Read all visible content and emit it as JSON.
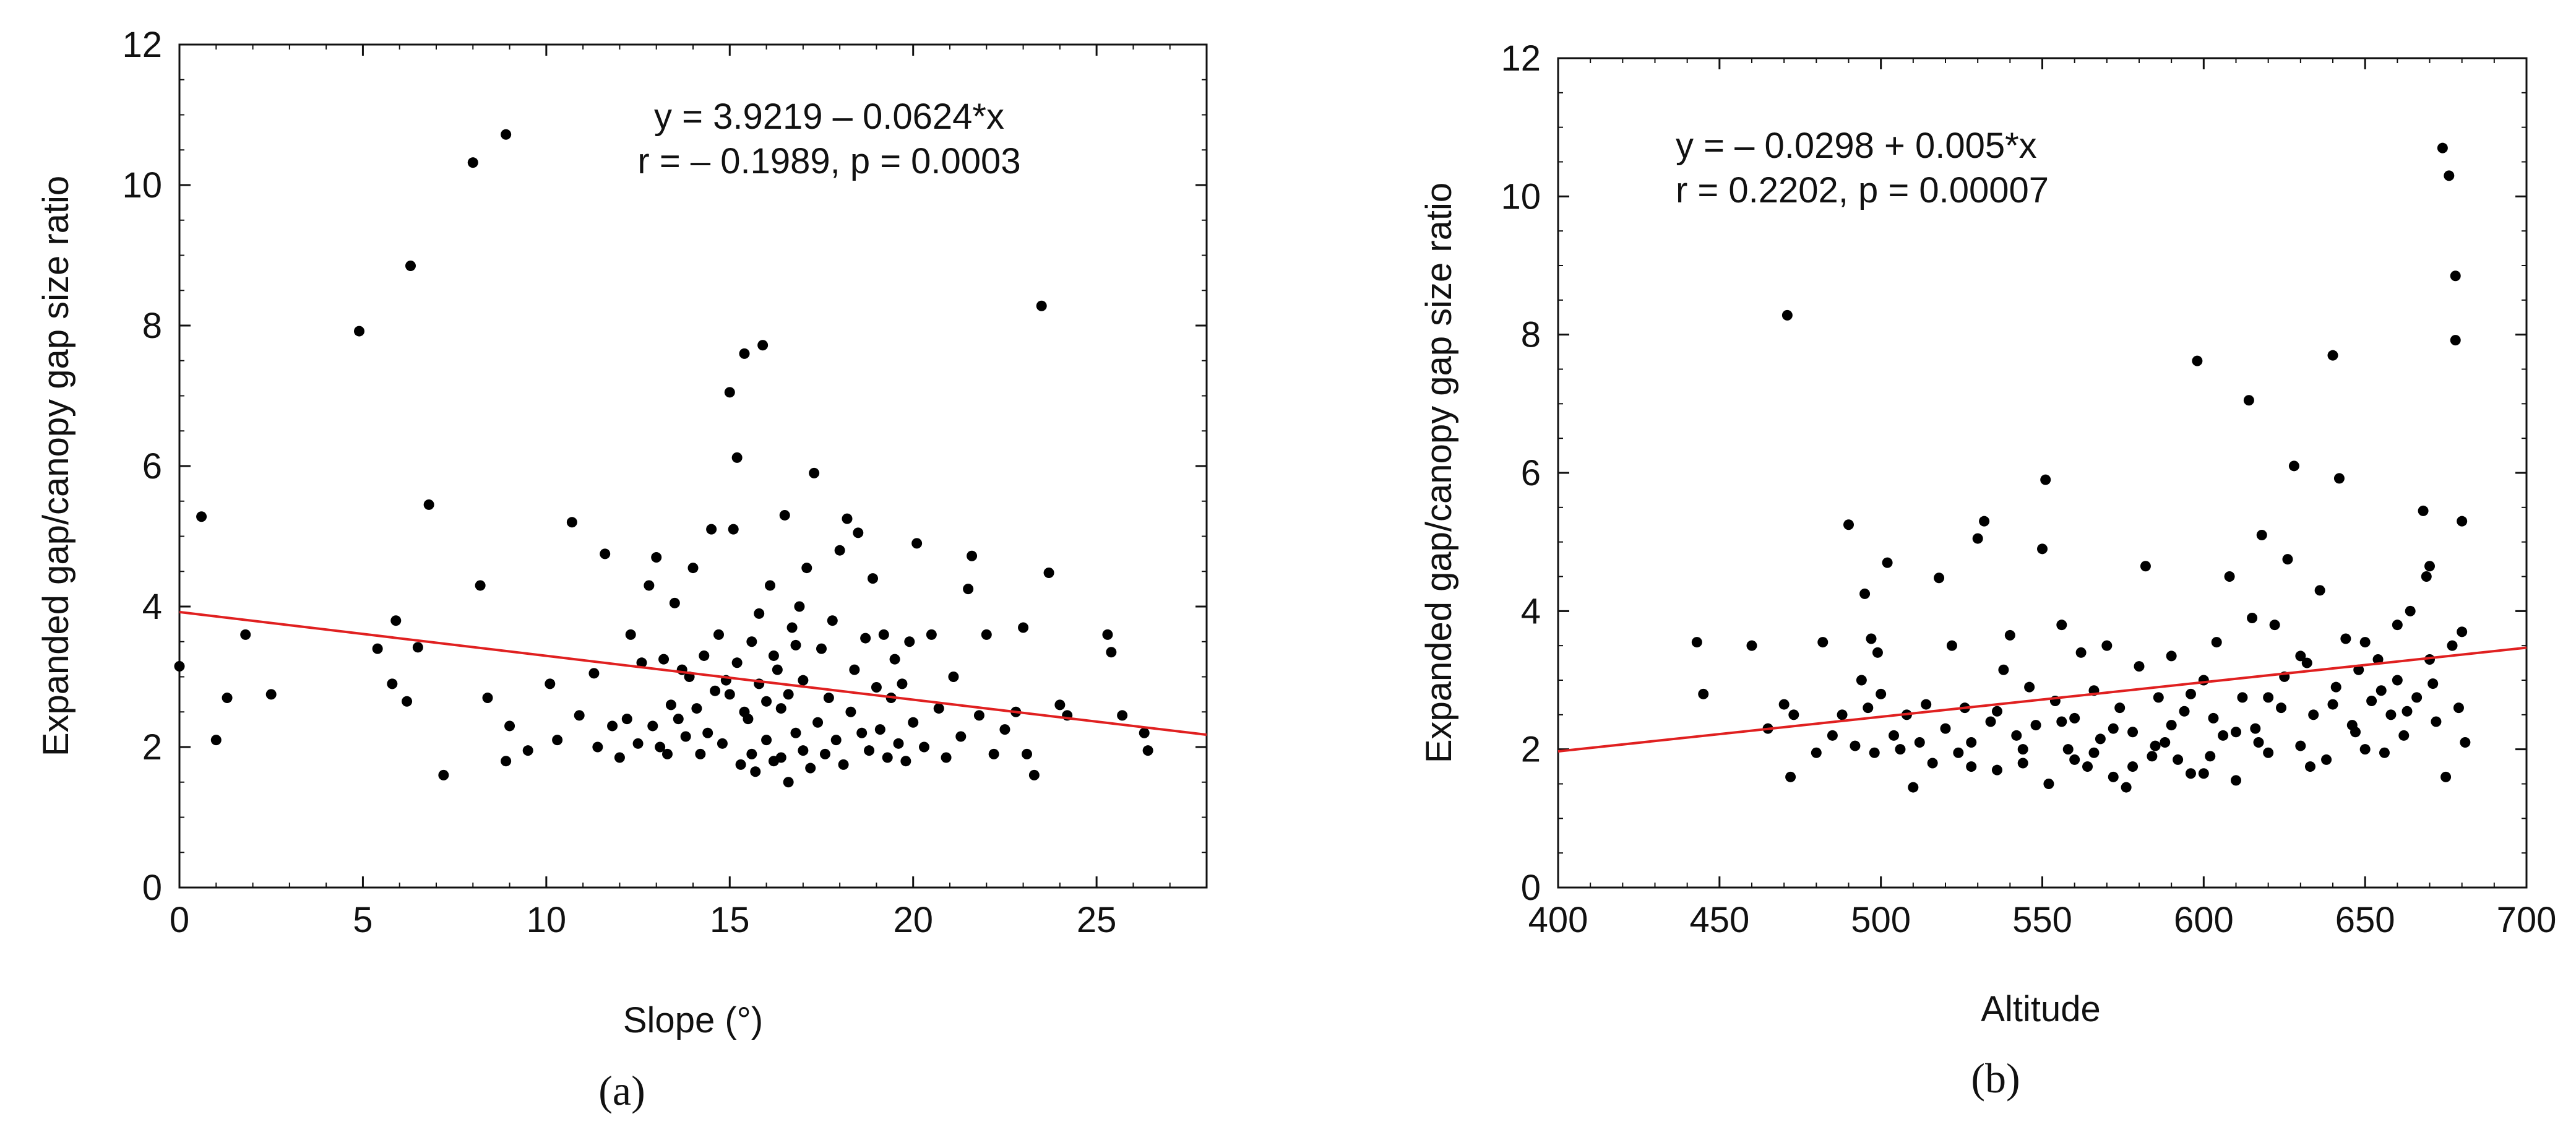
{
  "chart_data": [
    {
      "type": "scatter",
      "panel_label": "(a)",
      "xlabel": "Slope (°)",
      "ylabel": "Expanded gap/canopy gap size ratio",
      "xlim": [
        0,
        28
      ],
      "ylim": [
        0,
        12
      ],
      "xticks": [
        0,
        5,
        10,
        15,
        20,
        25
      ],
      "yticks": [
        0,
        2,
        4,
        6,
        8,
        10,
        12
      ],
      "equation": "y = 3.9219 – 0.0624*x",
      "stats": "r = – 0.1989, p = 0.0003",
      "regression": {
        "intercept": 3.9219,
        "slope": -0.0624,
        "color": "#e02020"
      },
      "point_color": "#000000",
      "points": [
        [
          0,
          3.15
        ],
        [
          0.6,
          5.28
        ],
        [
          1.0,
          2.1
        ],
        [
          1.3,
          2.7
        ],
        [
          1.8,
          3.6
        ],
        [
          2.5,
          2.75
        ],
        [
          4.9,
          7.92
        ],
        [
          5.4,
          3.4
        ],
        [
          5.8,
          2.9
        ],
        [
          5.9,
          3.8
        ],
        [
          6.2,
          2.65
        ],
        [
          6.3,
          8.85
        ],
        [
          6.5,
          3.42
        ],
        [
          6.8,
          5.45
        ],
        [
          7.2,
          1.6
        ],
        [
          8.0,
          10.32
        ],
        [
          8.2,
          4.3
        ],
        [
          8.4,
          2.7
        ],
        [
          8.9,
          10.72
        ],
        [
          8.9,
          1.8
        ],
        [
          9.0,
          2.3
        ],
        [
          9.5,
          1.95
        ],
        [
          10.1,
          2.9
        ],
        [
          10.3,
          2.1
        ],
        [
          10.7,
          5.2
        ],
        [
          10.9,
          2.45
        ],
        [
          11.3,
          3.05
        ],
        [
          11.4,
          2.0
        ],
        [
          11.6,
          4.75
        ],
        [
          11.8,
          2.3
        ],
        [
          12.0,
          1.85
        ],
        [
          12.2,
          2.4
        ],
        [
          12.3,
          3.6
        ],
        [
          12.5,
          2.05
        ],
        [
          12.6,
          3.2
        ],
        [
          12.8,
          4.3
        ],
        [
          12.9,
          2.3
        ],
        [
          13.0,
          4.7
        ],
        [
          13.1,
          2.0
        ],
        [
          13.2,
          3.25
        ],
        [
          13.3,
          1.9
        ],
        [
          13.4,
          2.6
        ],
        [
          13.5,
          4.05
        ],
        [
          13.6,
          2.4
        ],
        [
          13.7,
          3.1
        ],
        [
          13.8,
          2.15
        ],
        [
          13.9,
          3.0
        ],
        [
          14.0,
          4.55
        ],
        [
          14.1,
          2.55
        ],
        [
          14.2,
          1.9
        ],
        [
          14.3,
          3.3
        ],
        [
          14.4,
          2.2
        ],
        [
          14.5,
          5.1
        ],
        [
          14.6,
          2.8
        ],
        [
          14.7,
          3.6
        ],
        [
          14.8,
          2.05
        ],
        [
          14.9,
          2.95
        ],
        [
          15.0,
          7.05
        ],
        [
          15.0,
          2.75
        ],
        [
          15.1,
          5.1
        ],
        [
          15.2,
          6.12
        ],
        [
          15.3,
          1.75
        ],
        [
          15.4,
          7.6
        ],
        [
          15.5,
          2.4
        ],
        [
          15.6,
          3.5
        ],
        [
          15.7,
          1.65
        ],
        [
          15.8,
          2.9
        ],
        [
          15.9,
          7.72
        ],
        [
          16.0,
          2.1
        ],
        [
          16.1,
          4.3
        ],
        [
          16.2,
          1.8
        ],
        [
          16.3,
          3.1
        ],
        [
          16.4,
          2.55
        ],
        [
          16.5,
          5.3
        ],
        [
          16.6,
          1.5
        ],
        [
          16.7,
          3.7
        ],
        [
          16.8,
          2.2
        ],
        [
          16.9,
          4.0
        ],
        [
          15.2,
          3.2
        ],
        [
          15.4,
          2.5
        ],
        [
          15.6,
          1.9
        ],
        [
          15.8,
          3.9
        ],
        [
          16.0,
          2.65
        ],
        [
          16.2,
          3.3
        ],
        [
          16.4,
          1.85
        ],
        [
          16.6,
          2.75
        ],
        [
          16.8,
          3.45
        ],
        [
          17.0,
          1.95
        ],
        [
          17.0,
          2.95
        ],
        [
          17.1,
          4.55
        ],
        [
          17.2,
          1.7
        ],
        [
          17.3,
          5.9
        ],
        [
          17.4,
          2.35
        ],
        [
          17.5,
          3.4
        ],
        [
          17.6,
          1.9
        ],
        [
          17.7,
          2.7
        ],
        [
          17.8,
          3.8
        ],
        [
          17.9,
          2.1
        ],
        [
          18.0,
          4.8
        ],
        [
          18.1,
          1.75
        ],
        [
          18.2,
          5.25
        ],
        [
          18.3,
          2.5
        ],
        [
          18.4,
          3.1
        ],
        [
          18.5,
          5.05
        ],
        [
          18.6,
          2.2
        ],
        [
          18.7,
          3.55
        ],
        [
          18.8,
          1.95
        ],
        [
          18.9,
          4.4
        ],
        [
          19.0,
          2.85
        ],
        [
          19.1,
          2.25
        ],
        [
          19.2,
          3.6
        ],
        [
          19.3,
          1.85
        ],
        [
          19.4,
          2.7
        ],
        [
          19.5,
          3.25
        ],
        [
          19.6,
          2.05
        ],
        [
          19.7,
          2.9
        ],
        [
          19.8,
          1.8
        ],
        [
          19.9,
          3.5
        ],
        [
          20.0,
          2.35
        ],
        [
          20.1,
          4.9
        ],
        [
          20.3,
          2.0
        ],
        [
          20.5,
          3.6
        ],
        [
          20.7,
          2.55
        ],
        [
          20.9,
          1.85
        ],
        [
          21.1,
          3.0
        ],
        [
          21.3,
          2.15
        ],
        [
          21.5,
          4.25
        ],
        [
          21.6,
          4.72
        ],
        [
          21.8,
          2.45
        ],
        [
          22.0,
          3.6
        ],
        [
          22.2,
          1.9
        ],
        [
          22.5,
          2.25
        ],
        [
          22.8,
          2.5
        ],
        [
          23.0,
          3.7
        ],
        [
          23.1,
          1.9
        ],
        [
          23.3,
          1.6
        ],
        [
          23.5,
          8.28
        ],
        [
          23.7,
          4.48
        ],
        [
          24.0,
          2.6
        ],
        [
          24.2,
          2.45
        ],
        [
          25.3,
          3.6
        ],
        [
          25.4,
          3.35
        ],
        [
          25.7,
          2.45
        ],
        [
          26.3,
          2.2
        ],
        [
          26.4,
          1.95
        ]
      ]
    },
    {
      "type": "scatter",
      "panel_label": "(b)",
      "xlabel": "Altitude",
      "ylabel": "Expanded gap/canopy gap size ratio",
      "xlim": [
        400,
        700
      ],
      "ylim": [
        0,
        12
      ],
      "xticks": [
        400,
        450,
        500,
        550,
        600,
        650,
        700
      ],
      "yticks": [
        0,
        2,
        4,
        6,
        8,
        10,
        12
      ],
      "equation": "y = – 0.0298 + 0.005*x",
      "stats": "r = 0.2202, p = 0.00007",
      "regression": {
        "intercept": -0.0298,
        "slope": 0.005,
        "color": "#e02020"
      },
      "point_color": "#000000",
      "points": [
        [
          443,
          3.55
        ],
        [
          445,
          2.8
        ],
        [
          460,
          3.5
        ],
        [
          465,
          2.3
        ],
        [
          470,
          2.65
        ],
        [
          471,
          8.28
        ],
        [
          472,
          1.6
        ],
        [
          473,
          2.5
        ],
        [
          480,
          1.95
        ],
        [
          482,
          3.55
        ],
        [
          485,
          2.2
        ],
        [
          488,
          2.5
        ],
        [
          490,
          5.25
        ],
        [
          492,
          2.05
        ],
        [
          494,
          3.0
        ],
        [
          495,
          4.25
        ],
        [
          496,
          2.6
        ],
        [
          497,
          3.6
        ],
        [
          498,
          1.95
        ],
        [
          499,
          3.4
        ],
        [
          500,
          2.8
        ],
        [
          502,
          4.7
        ],
        [
          504,
          2.2
        ],
        [
          506,
          2.0
        ],
        [
          508,
          2.5
        ],
        [
          510,
          1.45
        ],
        [
          512,
          2.1
        ],
        [
          514,
          2.65
        ],
        [
          516,
          1.8
        ],
        [
          518,
          4.48
        ],
        [
          520,
          2.3
        ],
        [
          522,
          3.5
        ],
        [
          524,
          1.95
        ],
        [
          526,
          2.6
        ],
        [
          528,
          1.75
        ],
        [
          530,
          5.05
        ],
        [
          532,
          5.3
        ],
        [
          534,
          2.4
        ],
        [
          536,
          1.7
        ],
        [
          538,
          3.15
        ],
        [
          540,
          3.65
        ],
        [
          542,
          2.2
        ],
        [
          544,
          1.8
        ],
        [
          546,
          2.9
        ],
        [
          548,
          2.35
        ],
        [
          550,
          4.9
        ],
        [
          551,
          5.9
        ],
        [
          552,
          1.5
        ],
        [
          554,
          2.7
        ],
        [
          556,
          3.8
        ],
        [
          558,
          2.0
        ],
        [
          560,
          2.45
        ],
        [
          562,
          3.4
        ],
        [
          564,
          1.75
        ],
        [
          566,
          2.85
        ],
        [
          568,
          2.15
        ],
        [
          570,
          3.5
        ],
        [
          572,
          1.6
        ],
        [
          574,
          2.6
        ],
        [
          576,
          1.45
        ],
        [
          578,
          2.25
        ],
        [
          580,
          3.2
        ],
        [
          582,
          4.65
        ],
        [
          584,
          1.9
        ],
        [
          586,
          2.75
        ],
        [
          588,
          2.1
        ],
        [
          590,
          3.35
        ],
        [
          592,
          1.85
        ],
        [
          594,
          2.55
        ],
        [
          596,
          1.65
        ],
        [
          598,
          7.62
        ],
        [
          600,
          3.0
        ],
        [
          602,
          1.9
        ],
        [
          604,
          3.55
        ],
        [
          606,
          2.2
        ],
        [
          608,
          4.5
        ],
        [
          610,
          1.55
        ],
        [
          612,
          2.75
        ],
        [
          614,
          7.05
        ],
        [
          615,
          3.9
        ],
        [
          616,
          2.3
        ],
        [
          618,
          5.1
        ],
        [
          620,
          1.95
        ],
        [
          622,
          3.8
        ],
        [
          624,
          2.6
        ],
        [
          626,
          4.75
        ],
        [
          628,
          6.1
        ],
        [
          630,
          2.05
        ],
        [
          632,
          3.25
        ],
        [
          634,
          2.5
        ],
        [
          636,
          4.3
        ],
        [
          638,
          1.85
        ],
        [
          640,
          7.7
        ],
        [
          641,
          2.9
        ],
        [
          642,
          5.92
        ],
        [
          644,
          3.6
        ],
        [
          646,
          2.35
        ],
        [
          648,
          3.15
        ],
        [
          650,
          2.0
        ],
        [
          652,
          2.7
        ],
        [
          654,
          3.3
        ],
        [
          656,
          1.95
        ],
        [
          658,
          2.5
        ],
        [
          660,
          3.0
        ],
        [
          662,
          2.2
        ],
        [
          664,
          4.0
        ],
        [
          666,
          2.75
        ],
        [
          668,
          5.45
        ],
        [
          669,
          4.5
        ],
        [
          670,
          3.3
        ],
        [
          672,
          2.4
        ],
        [
          674,
          10.7
        ],
        [
          675,
          1.6
        ],
        [
          676,
          10.3
        ],
        [
          677,
          3.5
        ],
        [
          678,
          7.92
        ],
        [
          678,
          8.85
        ],
        [
          679,
          2.6
        ],
        [
          680,
          3.7
        ],
        [
          680,
          5.3
        ],
        [
          681,
          2.1
        ],
        [
          560,
          1.85
        ],
        [
          572,
          2.3
        ],
        [
          585,
          2.05
        ],
        [
          596,
          2.8
        ],
        [
          603,
          2.45
        ],
        [
          617,
          2.1
        ],
        [
          625,
          3.05
        ],
        [
          633,
          1.75
        ],
        [
          647,
          2.25
        ],
        [
          655,
          2.85
        ],
        [
          663,
          2.55
        ],
        [
          671,
          2.95
        ],
        [
          528,
          2.1
        ],
        [
          536,
          2.55
        ],
        [
          544,
          2.0
        ],
        [
          556,
          2.4
        ],
        [
          566,
          1.95
        ],
        [
          578,
          1.75
        ],
        [
          590,
          2.35
        ],
        [
          600,
          1.65
        ],
        [
          610,
          2.25
        ],
        [
          620,
          2.75
        ],
        [
          630,
          3.35
        ],
        [
          640,
          2.65
        ],
        [
          650,
          3.55
        ],
        [
          660,
          3.8
        ],
        [
          670,
          4.65
        ]
      ]
    }
  ]
}
